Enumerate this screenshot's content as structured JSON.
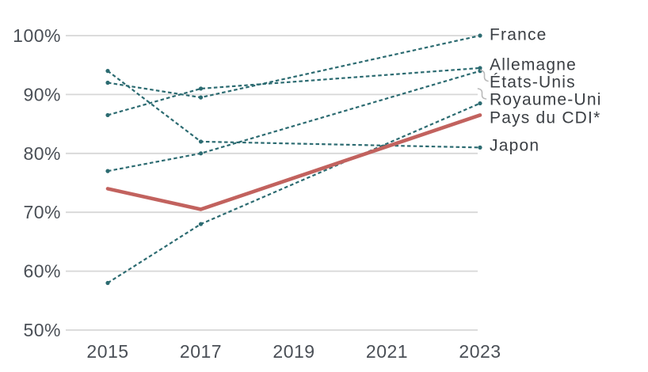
{
  "chart_data": {
    "type": "line",
    "x": [
      2015,
      2017,
      2023
    ],
    "x_axis_ticks": [
      "2015",
      "2017",
      "2019",
      "2021",
      "2023"
    ],
    "y_axis_ticks": [
      "100%",
      "90%",
      "80%",
      "70%",
      "60%",
      "50%"
    ],
    "ylim": [
      50,
      100
    ],
    "xlim": [
      2015,
      2023
    ],
    "grid": "horizontal-only",
    "legend_position": "labels-at-line-ends-right",
    "series": [
      {
        "name": "France",
        "values": [
          92,
          89.5,
          100
        ],
        "color": "#2c6b71",
        "style": "dashed",
        "markers": true
      },
      {
        "name": "Allemagne",
        "values": [
          86.5,
          91,
          94.5
        ],
        "color": "#2c6b71",
        "style": "dashed",
        "markers": true
      },
      {
        "name": "États-Unis",
        "values": [
          77,
          80,
          94
        ],
        "color": "#2c6b71",
        "style": "dashed",
        "markers": true
      },
      {
        "name": "Royaume-Uni",
        "values": [
          58,
          68,
          88.5
        ],
        "color": "#2c6b71",
        "style": "dashed",
        "markers": true
      },
      {
        "name": "Pays du CDI*",
        "values": [
          74,
          70.5,
          86.5
        ],
        "color": "#c2625e",
        "style": "solid",
        "markers": false
      },
      {
        "name": "Japon",
        "values": [
          94,
          82,
          81
        ],
        "color": "#2c6b71",
        "style": "dashed",
        "markers": true
      }
    ]
  },
  "colors": {
    "teal": "#2c6b71",
    "red": "#c2625e",
    "gridline": "#d7d7d7",
    "axis_text": "#4a4f56",
    "label_text": "#3b3f44",
    "connector": "#b9b9b9",
    "background": "#ffffff"
  }
}
